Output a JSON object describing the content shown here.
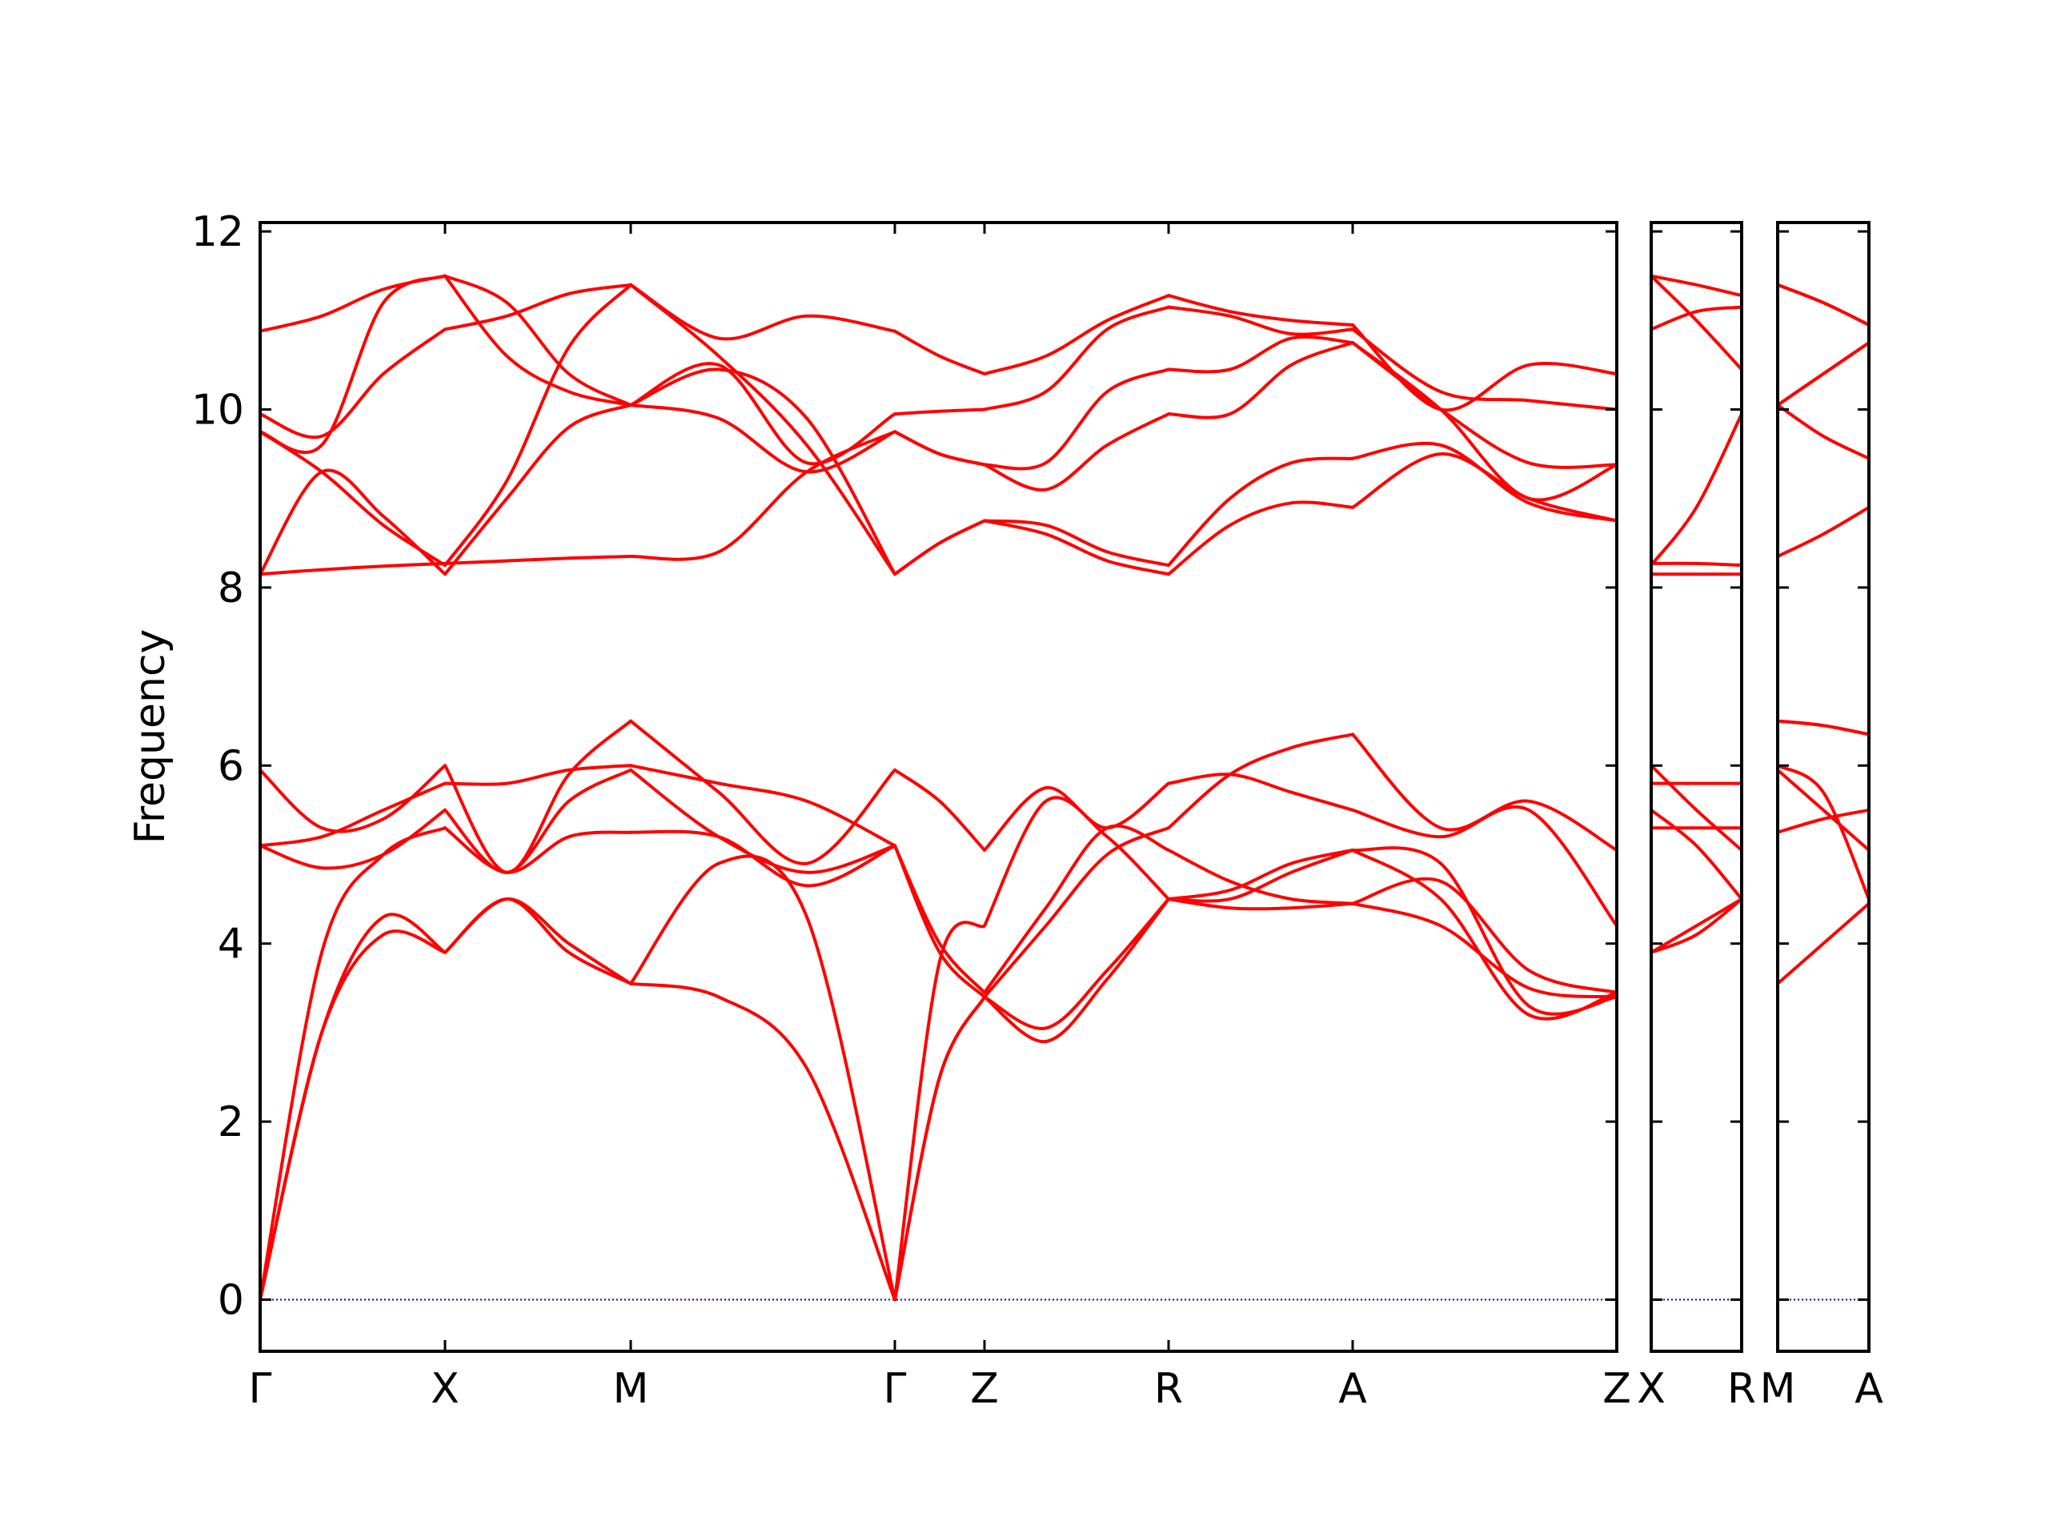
{
  "chart_data": {
    "type": "line",
    "ylabel": "Frequency",
    "ylim": [
      -0.58,
      12.1
    ],
    "yticks": [
      0,
      2,
      4,
      6,
      8,
      10,
      12
    ],
    "colors": {
      "bands": "#ff0000",
      "zero_line": "#0000cc",
      "axes": "#000000"
    },
    "zero_line_style": "dotted",
    "grid": false,
    "panels": [
      {
        "id": "p1",
        "segments": [
          {
            "from": "Γ",
            "to": "X",
            "bands": [
              [
                0.0,
                3.0,
                4.1,
                3.9
              ],
              [
                0.0,
                3.0,
                4.3,
                3.9
              ],
              [
                0.0,
                3.9,
                5.0,
                5.3
              ],
              [
                5.1,
                4.85,
                5.0,
                5.5
              ],
              [
                5.1,
                5.2,
                5.5,
                5.8
              ],
              [
                5.95,
                5.3,
                5.4,
                6.0
              ],
              [
                8.15,
                8.2,
                8.24,
                8.27
              ],
              [
                8.15,
                9.3,
                8.8,
                8.15
              ],
              [
                9.75,
                9.3,
                8.7,
                8.25
              ],
              [
                9.75,
                9.6,
                11.2,
                11.5
              ],
              [
                9.95,
                9.7,
                10.4,
                10.9
              ],
              [
                10.88,
                11.05,
                11.35,
                11.5
              ]
            ]
          },
          {
            "from": "X",
            "to": "M",
            "bands": [
              [
                3.9,
                4.5,
                3.9,
                3.55
              ],
              [
                3.9,
                4.5,
                4.0,
                3.55
              ],
              [
                5.3,
                4.8,
                5.2,
                5.25
              ],
              [
                5.5,
                4.8,
                5.6,
                5.95
              ],
              [
                5.8,
                5.8,
                5.95,
                6.0
              ],
              [
                6.0,
                4.8,
                5.9,
                6.5
              ],
              [
                8.27,
                8.3,
                8.33,
                8.35
              ],
              [
                8.15,
                9.0,
                9.8,
                10.05
              ],
              [
                8.25,
                9.2,
                10.7,
                11.4
              ],
              [
                11.5,
                10.6,
                10.2,
                10.05
              ],
              [
                10.9,
                11.05,
                11.3,
                11.4
              ],
              [
                11.5,
                11.2,
                10.4,
                10.05
              ]
            ]
          },
          {
            "from": "M",
            "to": "Γ",
            "bands": [
              [
                3.55,
                3.4,
                2.6,
                0.0
              ],
              [
                3.55,
                4.9,
                4.3,
                0.0
              ],
              [
                5.25,
                5.2,
                4.65,
                5.1
              ],
              [
                5.95,
                5.2,
                4.8,
                5.1
              ],
              [
                6.0,
                5.8,
                5.6,
                5.1
              ],
              [
                6.5,
                5.7,
                4.9,
                5.95
              ],
              [
                8.35,
                8.4,
                9.3,
                9.75
              ],
              [
                10.05,
                10.45,
                9.9,
                8.15
              ],
              [
                11.4,
                10.6,
                9.6,
                8.15
              ],
              [
                10.05,
                9.9,
                9.3,
                9.75
              ],
              [
                11.4,
                10.8,
                11.05,
                10.88
              ],
              [
                10.05,
                10.5,
                9.4,
                9.95
              ]
            ]
          },
          {
            "from": "Γ",
            "to": "Z",
            "bands": [
              [
                0.0,
                2.5,
                3.4
              ],
              [
                0.0,
                2.5,
                3.4
              ],
              [
                0.0,
                3.8,
                4.2
              ],
              [
                5.1,
                3.9,
                3.4
              ],
              [
                5.1,
                4.0,
                3.45
              ],
              [
                5.95,
                5.6,
                5.05
              ],
              [
                8.15,
                8.5,
                8.75
              ],
              [
                8.15,
                8.5,
                8.75
              ],
              [
                9.75,
                9.5,
                9.38
              ],
              [
                9.75,
                9.5,
                9.38
              ],
              [
                9.95,
                9.98,
                10.0
              ],
              [
                10.88,
                10.6,
                10.4
              ]
            ]
          },
          {
            "from": "Z",
            "to": "R",
            "bands": [
              [
                3.4,
                2.9,
                3.6,
                4.5
              ],
              [
                3.4,
                3.05,
                3.7,
                4.5
              ],
              [
                4.2,
                5.6,
                5.2,
                4.5
              ],
              [
                3.4,
                4.2,
                5.0,
                5.3
              ],
              [
                3.45,
                4.4,
                5.3,
                5.05
              ],
              [
                5.05,
                5.75,
                5.3,
                5.8
              ],
              [
                8.75,
                8.6,
                8.3,
                8.15
              ],
              [
                8.75,
                8.7,
                8.4,
                8.25
              ],
              [
                9.38,
                9.1,
                9.6,
                9.95
              ],
              [
                9.38,
                9.4,
                10.2,
                10.45
              ],
              [
                10.0,
                10.2,
                10.9,
                11.15
              ],
              [
                10.4,
                10.6,
                11.0,
                11.28
              ]
            ]
          },
          {
            "from": "R",
            "to": "A",
            "bands": [
              [
                4.5,
                4.4,
                4.4,
                4.45
              ],
              [
                4.5,
                4.5,
                4.8,
                5.05
              ],
              [
                4.5,
                4.6,
                4.9,
                5.05
              ],
              [
                5.3,
                5.9,
                6.2,
                6.35
              ],
              [
                5.05,
                4.7,
                4.5,
                4.45
              ],
              [
                5.8,
                5.9,
                5.7,
                5.5
              ],
              [
                8.15,
                8.7,
                8.95,
                8.9
              ],
              [
                8.25,
                9.0,
                9.4,
                9.45
              ],
              [
                9.95,
                9.95,
                10.5,
                10.75
              ],
              [
                10.45,
                10.45,
                10.8,
                10.75
              ],
              [
                11.15,
                11.05,
                10.85,
                10.9
              ],
              [
                11.28,
                11.1,
                11.0,
                10.95
              ]
            ]
          },
          {
            "from": "A",
            "to": "Z",
            "bands": [
              [
                4.45,
                4.2,
                3.5,
                3.4
              ],
              [
                5.05,
                4.9,
                3.3,
                3.4
              ],
              [
                5.05,
                4.5,
                3.2,
                3.45
              ],
              [
                6.35,
                5.3,
                5.6,
                5.05
              ],
              [
                4.45,
                4.7,
                3.7,
                3.45
              ],
              [
                5.5,
                5.2,
                5.5,
                4.2
              ],
              [
                8.9,
                9.5,
                9.0,
                8.75
              ],
              [
                9.45,
                9.6,
                8.95,
                8.75
              ],
              [
                10.75,
                10.0,
                9.0,
                9.38
              ],
              [
                10.75,
                10.0,
                9.4,
                9.38
              ],
              [
                10.9,
                10.2,
                10.1,
                10.0
              ],
              [
                10.95,
                10.0,
                10.5,
                10.4
              ]
            ]
          }
        ]
      },
      {
        "id": "p2",
        "segments": [
          {
            "from": "X",
            "to": "R",
            "bands": [
              [
                3.9,
                4.2,
                4.5
              ],
              [
                3.9,
                4.1,
                4.5
              ],
              [
                5.3,
                5.3,
                5.3
              ],
              [
                5.5,
                5.1,
                4.5
              ],
              [
                5.8,
                5.8,
                5.8
              ],
              [
                6.0,
                5.5,
                5.05
              ],
              [
                8.27,
                8.27,
                8.25
              ],
              [
                8.15,
                8.15,
                8.15
              ],
              [
                8.25,
                8.9,
                9.95
              ],
              [
                10.9,
                11.1,
                11.15
              ],
              [
                11.5,
                11.0,
                10.45
              ],
              [
                11.5,
                11.4,
                11.28
              ]
            ]
          }
        ]
      },
      {
        "id": "p3",
        "segments": [
          {
            "from": "M",
            "to": "A",
            "bands": [
              [
                3.55,
                4.0,
                4.45
              ],
              [
                5.25,
                5.4,
                5.5
              ],
              [
                5.95,
                5.5,
                5.05
              ],
              [
                6.0,
                5.7,
                4.5
              ],
              [
                6.5,
                6.45,
                6.35
              ],
              [
                6.5,
                6.45,
                6.35
              ],
              [
                8.35,
                8.6,
                8.9
              ],
              [
                10.05,
                9.7,
                9.45
              ],
              [
                10.05,
                10.4,
                10.75
              ],
              [
                10.05,
                10.4,
                10.75
              ],
              [
                11.4,
                11.2,
                10.95
              ],
              [
                11.4,
                11.2,
                10.95
              ]
            ]
          }
        ]
      }
    ],
    "xtick_labels": {
      "p1": [
        "Γ",
        "X",
        "M",
        "Γ",
        "Z",
        "R",
        "A",
        "Z"
      ],
      "p2": [
        "X",
        "R"
      ],
      "p3": [
        "M",
        "A"
      ]
    }
  }
}
